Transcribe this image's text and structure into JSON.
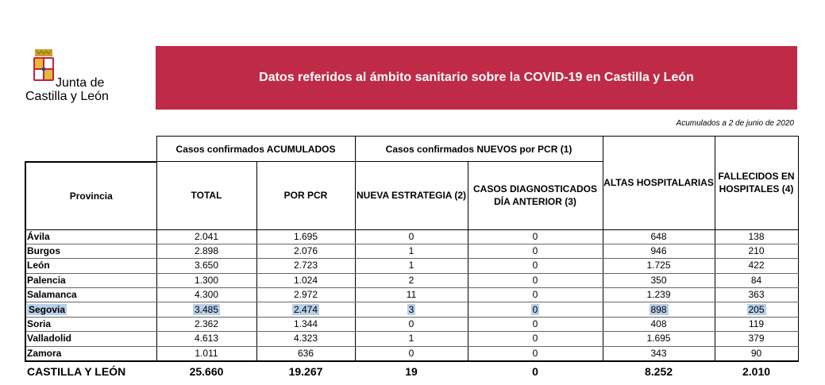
{
  "logo": {
    "line1": "Junta de",
    "line2": "Castilla y León"
  },
  "banner": {
    "title": "Datos referidos al ámbito sanitario sobre la COVID-19 en Castilla y León"
  },
  "date_note": "Acumulados a 2 de junio de 2020",
  "table": {
    "group_headers": {
      "acumulados": "Casos confirmados ACUMULADOS",
      "nuevos": "Casos confirmados NUEVOS por PCR (1)"
    },
    "headers": {
      "provincia": "Provincia",
      "total": "TOTAL",
      "por_pcr": "POR PCR",
      "nueva_estrategia": "NUEVA ESTRATEGIA (2)",
      "casos_diag": "CASOS DIAGNOSTICADOS DÍA ANTERIOR (3)",
      "altas": "ALTAS HOSPITALARIAS",
      "fallecidos": "FALLECIDOS EN HOSPITALES (4)"
    },
    "rows": [
      [
        "Ávila",
        "2.041",
        "1.695",
        "0",
        "0",
        "648",
        "138"
      ],
      [
        "Burgos",
        "2.898",
        "2.076",
        "1",
        "0",
        "946",
        "210"
      ],
      [
        "León",
        "3.650",
        "2.723",
        "1",
        "0",
        "1.725",
        "422"
      ],
      [
        "Palencia",
        "1.300",
        "1.024",
        "2",
        "0",
        "350",
        "84"
      ],
      [
        "Salamanca",
        "4.300",
        "2.972",
        "11",
        "0",
        "1.239",
        "363"
      ],
      [
        "Segovia",
        "3.485",
        "2.474",
        "3",
        "0",
        "898",
        "205"
      ],
      [
        "Soria",
        "2.362",
        "1.344",
        "0",
        "0",
        "408",
        "119"
      ],
      [
        "Valladolid",
        "4.613",
        "4.323",
        "1",
        "0",
        "1.695",
        "379"
      ],
      [
        "Zamora",
        "1.011",
        "636",
        "0",
        "0",
        "343",
        "90"
      ]
    ],
    "highlighted_row": "Segovia",
    "total": [
      "CASTILLA Y LEÓN",
      "25.660",
      "19.267",
      "19",
      "0",
      "8.252",
      "2.010"
    ]
  }
}
